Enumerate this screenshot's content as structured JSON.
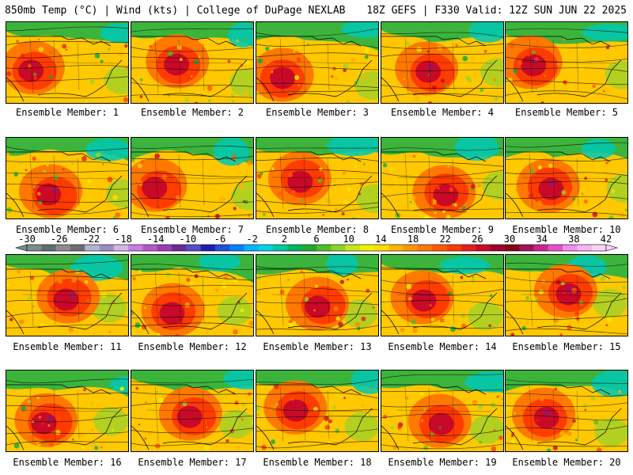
{
  "header": {
    "left": "850mb Temp (°C) | Wind (kts) | College of DuPage NEXLAB",
    "right": "18Z GEFS | F330 Valid: 12Z SUN JUN 22 2025"
  },
  "panels": [
    {
      "label": "Ensemble Member: 1"
    },
    {
      "label": "Ensemble Member: 2"
    },
    {
      "label": "Ensemble Member: 3"
    },
    {
      "label": "Ensemble Member: 4"
    },
    {
      "label": "Ensemble Member: 5"
    },
    {
      "label": "Ensemble Member: 6"
    },
    {
      "label": "Ensemble Member: 7"
    },
    {
      "label": "Ensemble Member: 8"
    },
    {
      "label": "Ensemble Member: 9"
    },
    {
      "label": "Ensemble Member: 10"
    },
    {
      "label": "Ensemble Member: 11"
    },
    {
      "label": "Ensemble Member: 12"
    },
    {
      "label": "Ensemble Member: 13"
    },
    {
      "label": "Ensemble Member: 14"
    },
    {
      "label": "Ensemble Member: 15"
    },
    {
      "label": "Ensemble Member: 16"
    },
    {
      "label": "Ensemble Member: 17"
    },
    {
      "label": "Ensemble Member: 18"
    },
    {
      "label": "Ensemble Member: 19"
    },
    {
      "label": "Ensemble Member: 20"
    }
  ],
  "colorbar": {
    "tick_labels": [
      "-30",
      "-26",
      "-22",
      "-18",
      "-14",
      "-10",
      "-6",
      "-2",
      "2",
      "6",
      "10",
      "14",
      "18",
      "22",
      "26",
      "30",
      "34",
      "38",
      "42"
    ],
    "colors": [
      "#7b8c8c",
      "#5f6f6f",
      "#8c8c8c",
      "#6e6e6e",
      "#b4b4d2",
      "#9b8bc8",
      "#d7b4e6",
      "#c87de6",
      "#b45ac8",
      "#9b3cb4",
      "#6e2896",
      "#5050c8",
      "#1e1eb4",
      "#1e50dc",
      "#0080ff",
      "#00b4ff",
      "#00d2e6",
      "#00c8a0",
      "#00b464",
      "#1eaa32",
      "#50be28",
      "#8cd228",
      "#c8e61e",
      "#f0f000",
      "#ffdc00",
      "#ffb400",
      "#ff9600",
      "#ff7800",
      "#ff5a00",
      "#ff3c00",
      "#e61e1e",
      "#c80a28",
      "#a0002d",
      "#820014",
      "#a0145a",
      "#c8288c",
      "#e650c8",
      "#f08cf0",
      "#f5b4f5",
      "#fad2fa"
    ]
  }
}
